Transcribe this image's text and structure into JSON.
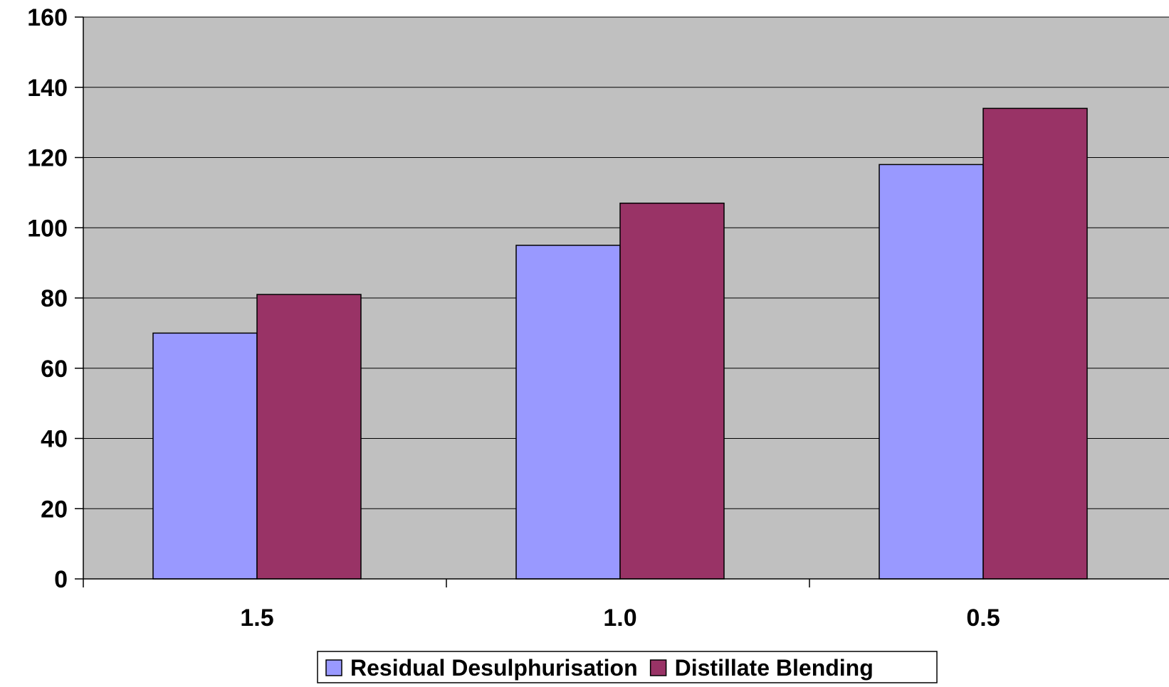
{
  "chart_data": {
    "type": "bar",
    "categories": [
      "1.5",
      "1.0",
      "0.5"
    ],
    "series": [
      {
        "name": "Residual Desulphurisation",
        "values": [
          70,
          95,
          118
        ],
        "color": "#9999ff"
      },
      {
        "name": "Distillate Blending",
        "values": [
          81,
          107,
          134
        ],
        "color": "#993366"
      }
    ],
    "ylim": [
      0,
      160
    ],
    "yticks": [
      0,
      20,
      40,
      60,
      80,
      100,
      120,
      140,
      160
    ],
    "grid": true,
    "plot_background": "#c0c0c0",
    "legend": "bottom-center"
  }
}
